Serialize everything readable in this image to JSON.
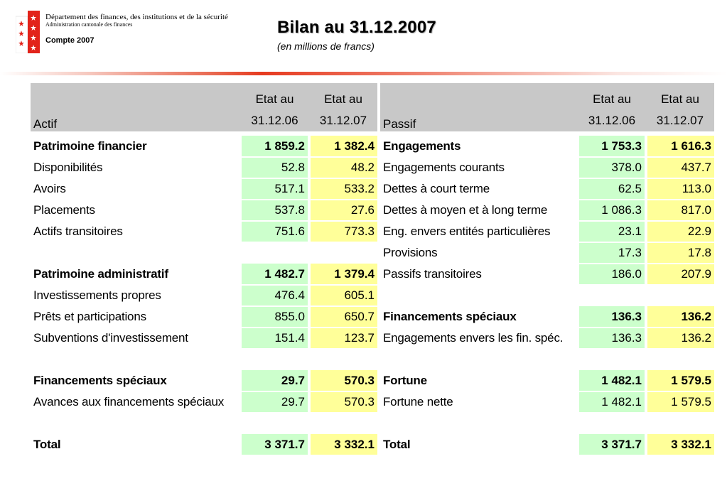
{
  "header": {
    "department": "Département des finances, des institutions et de la sécurité",
    "administration": "Administration cantonale des finances",
    "compte": "Compte 2007",
    "title": "Bilan au 31.12.2007",
    "subtitle": "(en millions de francs)"
  },
  "colors": {
    "col_2006": "#ccffcc",
    "col_2007": "#ffff99",
    "header_bg": "#c8c8c8",
    "accent": "#e63a1f"
  },
  "actif": {
    "header": {
      "label": "Actif",
      "c1_l1": "Etat au",
      "c1_l2": "31.12.06",
      "c2_l1": "Etat au",
      "c2_l2": "31.12.07"
    },
    "rows": [
      {
        "label": "Patrimoine financier",
        "v1": "1 859.2",
        "v2": "1 382.4",
        "bold": true
      },
      {
        "label": "Disponibilités",
        "v1": "52.8",
        "v2": "48.2"
      },
      {
        "label": "Avoirs",
        "v1": "517.1",
        "v2": "533.2"
      },
      {
        "label": "Placements",
        "v1": "537.8",
        "v2": "27.6"
      },
      {
        "label": "Actifs transitoires",
        "v1": "751.6",
        "v2": "773.3"
      },
      {
        "label": "Patrimoine administratif",
        "v1": "1 482.7",
        "v2": "1 379.4",
        "bold": true
      },
      {
        "label": "Investissements propres",
        "v1": "476.4",
        "v2": "605.1"
      },
      {
        "label": "Prêts et participations",
        "v1": "855.0",
        "v2": "650.7"
      },
      {
        "label": "Subventions d'investissement",
        "v1": "151.4",
        "v2": "123.7"
      },
      {
        "label": "Financements spéciaux",
        "v1": "29.7",
        "v2": "570.3",
        "bold": true
      },
      {
        "label": "Avances aux financements spéciaux",
        "v1": "29.7",
        "v2": "570.3"
      },
      {
        "label": "Total",
        "v1": "3 371.7",
        "v2": "3 332.1",
        "bold": true
      }
    ]
  },
  "passif": {
    "header": {
      "label": "Passif",
      "c1_l1": "Etat au",
      "c1_l2": "31.12.06",
      "c2_l1": "Etat au",
      "c2_l2": "31.12.07"
    },
    "rows": [
      {
        "label": "Engagements",
        "v1": "1 753.3",
        "v2": "1 616.3",
        "bold": true
      },
      {
        "label": "Engagements courants",
        "v1": "378.0",
        "v2": "437.7"
      },
      {
        "label": "Dettes à court terme",
        "v1": "62.5",
        "v2": "113.0"
      },
      {
        "label": "Dettes à moyen et à long terme",
        "v1": "1 086.3",
        "v2": "817.0"
      },
      {
        "label": "Eng. envers entités particulières",
        "v1": "23.1",
        "v2": "22.9"
      },
      {
        "label": "Provisions",
        "v1": "17.3",
        "v2": "17.8"
      },
      {
        "label": "Passifs transitoires",
        "v1": "186.0",
        "v2": "207.9"
      },
      {
        "label": "Financements spéciaux",
        "v1": "136.3",
        "v2": "136.2",
        "bold": true
      },
      {
        "label": "Engagements envers les fin. spéc.",
        "v1": "136.3",
        "v2": "136.2"
      },
      {
        "label": "Fortune",
        "v1": "1 482.1",
        "v2": "1 579.5",
        "bold": true
      },
      {
        "label": "Fortune nette",
        "v1": "1 482.1",
        "v2": "1 579.5"
      },
      {
        "label": "Total",
        "v1": "3 371.7",
        "v2": "3 332.1",
        "bold": true
      }
    ]
  }
}
